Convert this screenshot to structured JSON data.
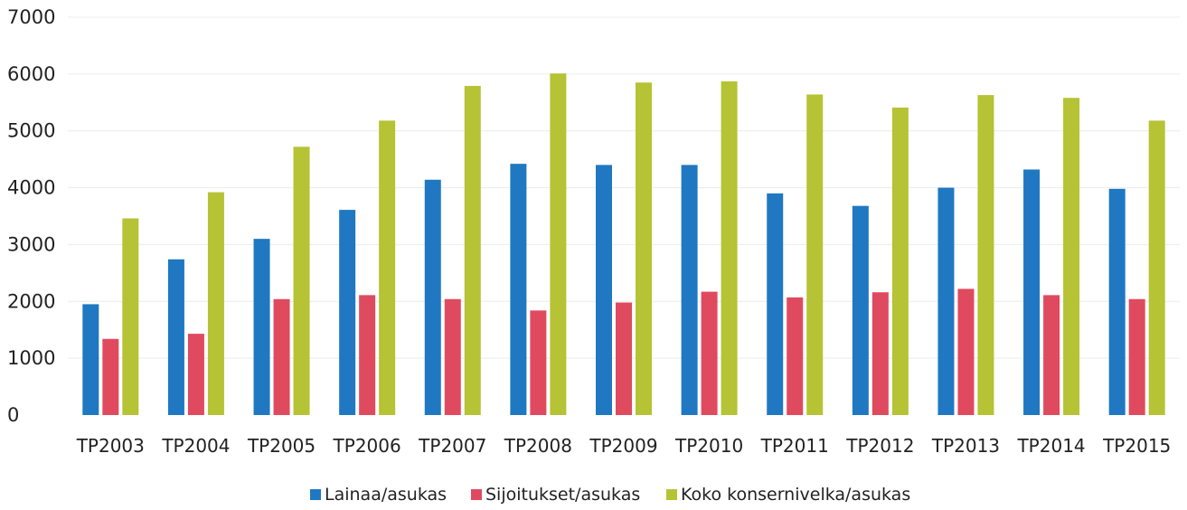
{
  "chart_data": {
    "type": "bar",
    "categories": [
      "TP2003",
      "TP2004",
      "TP2005",
      "TP2006",
      "TP2007",
      "TP2008",
      "TP2009",
      "TP2010",
      "TP2011",
      "TP2012",
      "TP2013",
      "TP2014",
      "TP2015"
    ],
    "series": [
      {
        "name": "Lainaa/asukas",
        "color": "#1f78c1",
        "values": [
          1950,
          2740,
          3100,
          3610,
          4140,
          4420,
          4400,
          4400,
          3900,
          3680,
          4000,
          4320,
          3980
        ]
      },
      {
        "name": "Sijoitukset/asukas",
        "color": "#e04a5f",
        "values": [
          1340,
          1430,
          2040,
          2110,
          2040,
          1840,
          1980,
          2170,
          2070,
          2160,
          2220,
          2110,
          2040
        ]
      },
      {
        "name": "Koko konsernivelka/asukas",
        "color": "#b5c334",
        "values": [
          3460,
          3920,
          4720,
          5180,
          5790,
          6010,
          5850,
          5870,
          5640,
          5410,
          5630,
          5580,
          5180
        ]
      }
    ],
    "ylim": [
      0,
      7000
    ],
    "yticks": [
      "0",
      "1000",
      "2000",
      "3000",
      "4000",
      "5000",
      "6000",
      "7000"
    ],
    "grid": true,
    "legend_position": "bottom"
  }
}
